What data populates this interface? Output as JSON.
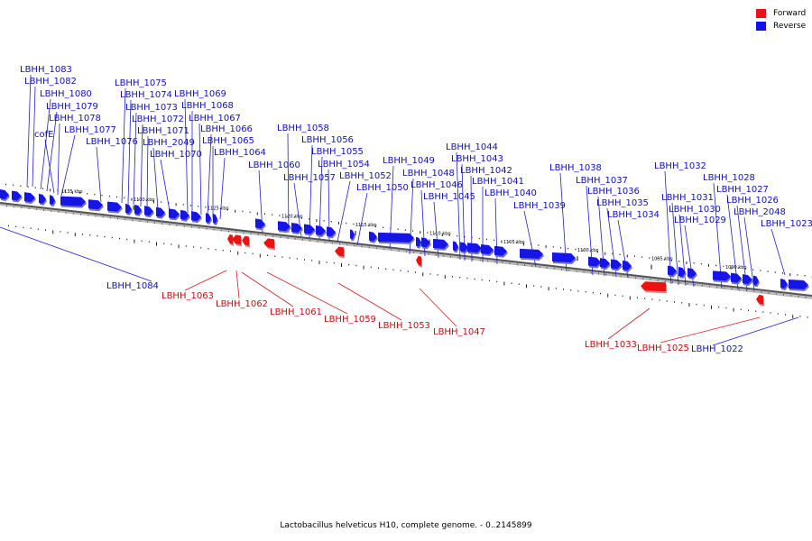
{
  "legend": [
    {
      "label": "Forward",
      "color": "#ee1111"
    },
    {
      "label": "Reverse",
      "color": "#1111ee"
    }
  ],
  "caption": "Lactobacillus helveticus H10, complete genome. - 0..2145899",
  "chart_data": {
    "type": "genome-map",
    "axis_unit": "kbp",
    "ticks": [
      "1135 kbp",
      "1130 kbp",
      "1125 kbp",
      "1120 kbp",
      "1115 kbp",
      "1110 kbp",
      "1105 kbp",
      "1100 kbp",
      "1095 kbp",
      "1090 kbp"
    ],
    "reverse_labels": [
      "LBHH_1083",
      "LBHH_1082",
      "LBHH_1080",
      "LBHH_1079",
      "cofE",
      "LBHH_1078",
      "LBHH_1077",
      "LBHH_1076",
      "LBHH_1075",
      "LBHH_1074",
      "LBHH_1073",
      "LBHH_1072",
      "LBHH_1071",
      "LBHH_2049",
      "LBHH_1070",
      "LBHH_1069",
      "LBHH_1068",
      "LBHH_1067",
      "LBHH_1066",
      "LBHH_1065",
      "LBHH_1064",
      "LBHH_1060",
      "LBHH_1058",
      "LBHH_1057",
      "LBHH_1056",
      "LBHH_1055",
      "LBHH_1054",
      "LBHH_1052",
      "LBHH_1050",
      "LBHH_1049",
      "LBHH_1048",
      "LBHH_1046",
      "LBHH_1045",
      "LBHH_1044",
      "LBHH_1043",
      "LBHH_1042",
      "LBHH_1041",
      "LBHH_1040",
      "LBHH_1039",
      "LBHH_1038",
      "LBHH_1037",
      "LBHH_1036",
      "LBHH_1035",
      "LBHH_1034",
      "LBHH_1032",
      "LBHH_1031",
      "LBHH_1030",
      "LBHH_1029",
      "LBHH_1028",
      "LBHH_1027",
      "LBHH_1026",
      "LBHH_2048",
      "LBHH_1023",
      "LBHH_1084",
      "LBHH_1022"
    ],
    "forward_labels": [
      "LBHH_1063",
      "LBHH_1062",
      "LBHH_1061",
      "LBHH_1059",
      "LBHH_1053",
      "LBHH_1047",
      "LBHH_1033",
      "LBHH_1025"
    ]
  }
}
